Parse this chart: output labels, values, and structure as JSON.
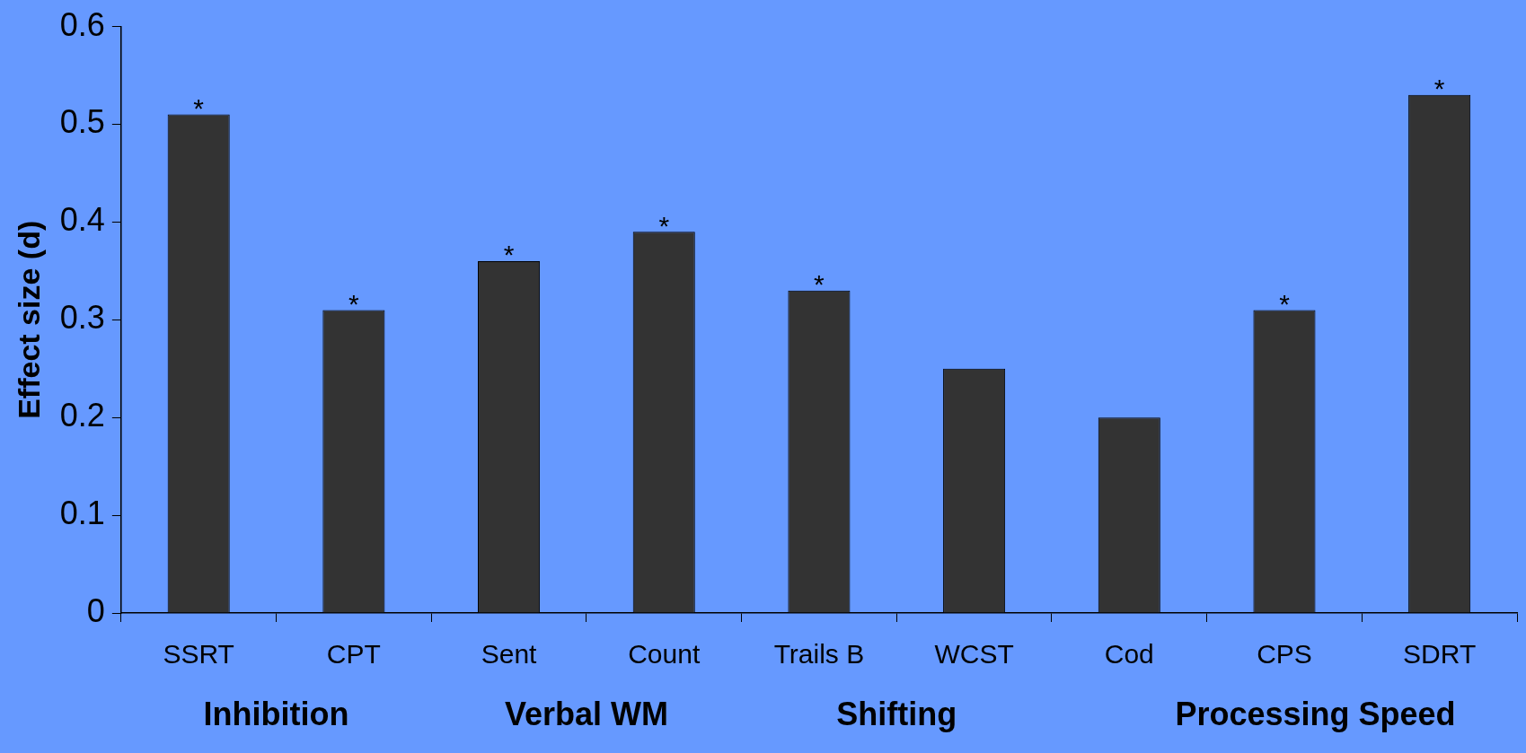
{
  "chart_data": {
    "type": "bar",
    "ylabel": "Effect size (d)",
    "categories": [
      "SSRT",
      "CPT",
      "Sent",
      "Count",
      "Trails B",
      "WCST",
      "Cod",
      "CPS",
      "SDRT"
    ],
    "values": [
      0.51,
      0.31,
      0.36,
      0.39,
      0.33,
      0.25,
      0.2,
      0.31,
      0.53
    ],
    "value_labels": [
      "*",
      "*",
      "*",
      "*",
      "*",
      null,
      null,
      "*",
      "*"
    ],
    "color": "#333333",
    "ylim": [
      0,
      0.6
    ],
    "yticks": [
      0,
      0.1,
      0.2,
      0.3,
      0.4,
      0.5,
      0.6
    ],
    "annotations": [
      "Inhibition",
      "Verbal WM",
      "Shifting",
      "Processing Speed"
    ]
  }
}
